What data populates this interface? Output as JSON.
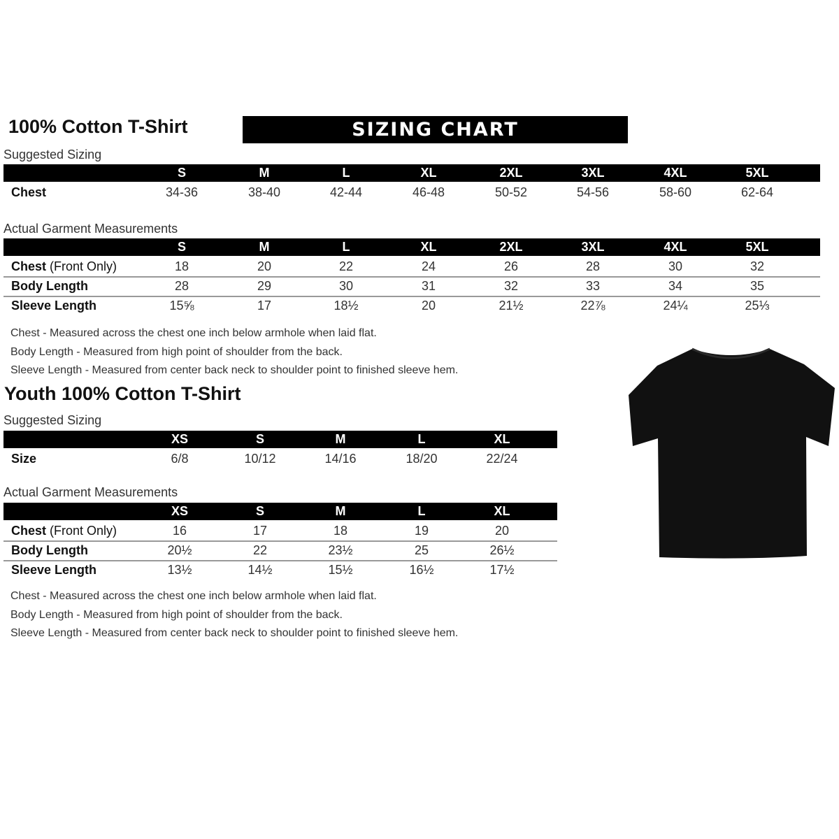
{
  "adult": {
    "title": "100% Cotton T-Shirt",
    "banner": "SIZING CHART",
    "suggested_label": "Suggested Sizing",
    "sizes": [
      "S",
      "M",
      "L",
      "XL",
      "2XL",
      "3XL",
      "4XL",
      "5XL"
    ],
    "suggested_rows": [
      {
        "label": "Chest",
        "values": [
          "34-36",
          "38-40",
          "42-44",
          "46-48",
          "50-52",
          "54-56",
          "58-60",
          "62-64"
        ]
      }
    ],
    "actual_label": "Actual Garment Measurements",
    "actual_rows": [
      {
        "label": "Chest",
        "label_note": "(Front Only)",
        "values": [
          "18",
          "20",
          "22",
          "24",
          "26",
          "28",
          "30",
          "32"
        ]
      },
      {
        "label": "Body Length",
        "label_note": "",
        "values": [
          "28",
          "29",
          "30",
          "31",
          "32",
          "33",
          "34",
          "35"
        ]
      },
      {
        "label": "Sleeve Length",
        "label_note": "",
        "values": [
          "15⅝",
          "17",
          "18½",
          "20",
          "21½",
          "22⅞",
          "24¼",
          "25⅓"
        ]
      }
    ],
    "notes": [
      "Chest - Measured across the chest one inch below armhole when laid flat.",
      "Body Length - Measured from high point of shoulder from the back.",
      "Sleeve Length - Measured from center back neck to shoulder point to finished sleeve hem."
    ]
  },
  "youth": {
    "title": "Youth 100% Cotton T-Shirt",
    "suggested_label": "Suggested Sizing",
    "sizes": [
      "XS",
      "S",
      "M",
      "L",
      "XL"
    ],
    "suggested_rows": [
      {
        "label": "Size",
        "values": [
          "6/8",
          "10/12",
          "14/16",
          "18/20",
          "22/24"
        ]
      }
    ],
    "actual_label": "Actual Garment Measurements",
    "actual_rows": [
      {
        "label": "Chest",
        "label_note": "(Front Only)",
        "values": [
          "16",
          "17",
          "18",
          "19",
          "20"
        ]
      },
      {
        "label": "Body Length",
        "label_note": "",
        "values": [
          "20½",
          "22",
          "23½",
          "25",
          "26½"
        ]
      },
      {
        "label": "Sleeve Length",
        "label_note": "",
        "values": [
          "13½",
          "14½",
          "15½",
          "16½",
          "17½"
        ]
      }
    ],
    "notes": [
      "Chest - Measured across the chest one inch below armhole when laid flat.",
      "Body Length - Measured from high point of shoulder from the back.",
      "Sleeve Length - Measured from center back neck to shoulder point to finished sleeve hem."
    ]
  },
  "image": {
    "icon": "black-t-shirt",
    "color": "#111111"
  }
}
